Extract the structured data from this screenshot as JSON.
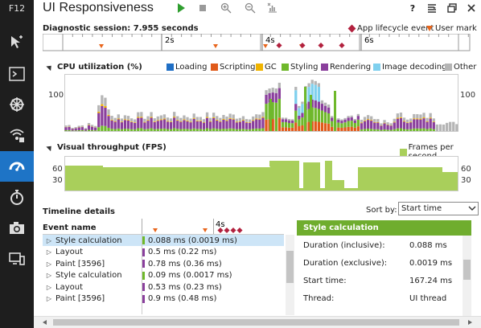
{
  "app": {
    "f12": "F12",
    "title": "UI Responsiveness"
  },
  "sidebar": {
    "items": [
      {
        "name": "dom-explorer-icon"
      },
      {
        "name": "console-icon"
      },
      {
        "name": "debugger-icon"
      },
      {
        "name": "network-icon"
      },
      {
        "name": "ui-responsiveness-icon"
      },
      {
        "name": "profiler-icon"
      },
      {
        "name": "memory-icon"
      },
      {
        "name": "emulation-icon"
      }
    ]
  },
  "session": {
    "label": "Diagnostic session: 7.955 seconds",
    "ticks": [
      "2s",
      "4s",
      "6s"
    ],
    "legend_lifecycle": "App lifecycle event",
    "legend_usermark": "User mark"
  },
  "cpu": {
    "title": "CPU utilization (%)",
    "axis_label": "100",
    "legend": [
      {
        "label": "Loading",
        "color": "#1f6fc5"
      },
      {
        "label": "Scripting",
        "color": "#e05a1a"
      },
      {
        "label": "GC",
        "color": "#f0b400"
      },
      {
        "label": "Styling",
        "color": "#6fb82b"
      },
      {
        "label": "Rendering",
        "color": "#8a3f9c"
      },
      {
        "label": "Image decoding",
        "color": "#7fd0ee"
      },
      {
        "label": "Other",
        "color": "#b5b5b5"
      }
    ]
  },
  "fps": {
    "title": "Visual throughput (FPS)",
    "legend": "Frames per second",
    "color": "#a9cf5b",
    "axis_60": "60",
    "axis_30": "30"
  },
  "details": {
    "title": "Timeline details",
    "sort_label": "Sort by:",
    "sort_value": "Start time",
    "column": "Event name",
    "tick": "4s",
    "rows": [
      {
        "name": "Style calculation",
        "duration": "0.088 ms (0.0019 ms)",
        "color": "#6fb82b",
        "selected": true
      },
      {
        "name": "Layout",
        "duration": "0.5 ms (0.22 ms)",
        "color": "#8a3f9c",
        "selected": false
      },
      {
        "name": "Paint [3596]",
        "duration": "0.78 ms (0.36 ms)",
        "color": "#8a3f9c",
        "selected": false
      },
      {
        "name": "Style calculation",
        "duration": "0.09 ms (0.0017 ms)",
        "color": "#6fb82b",
        "selected": false
      },
      {
        "name": "Layout",
        "duration": "0.53 ms (0.23 ms)",
        "color": "#8a3f9c",
        "selected": false
      },
      {
        "name": "Paint [3596]",
        "duration": "0.9 ms (0.48 ms)",
        "color": "#8a3f9c",
        "selected": false
      }
    ],
    "panel": {
      "title": "Style calculation",
      "fields": [
        {
          "label": "Duration (inclusive):",
          "value": "0.088 ms"
        },
        {
          "label": "Duration (exclusive):",
          "value": "0.0019 ms"
        },
        {
          "label": "Start time:",
          "value": "167.24 ms"
        },
        {
          "label": "Thread:",
          "value": "UI thread"
        }
      ]
    }
  }
}
